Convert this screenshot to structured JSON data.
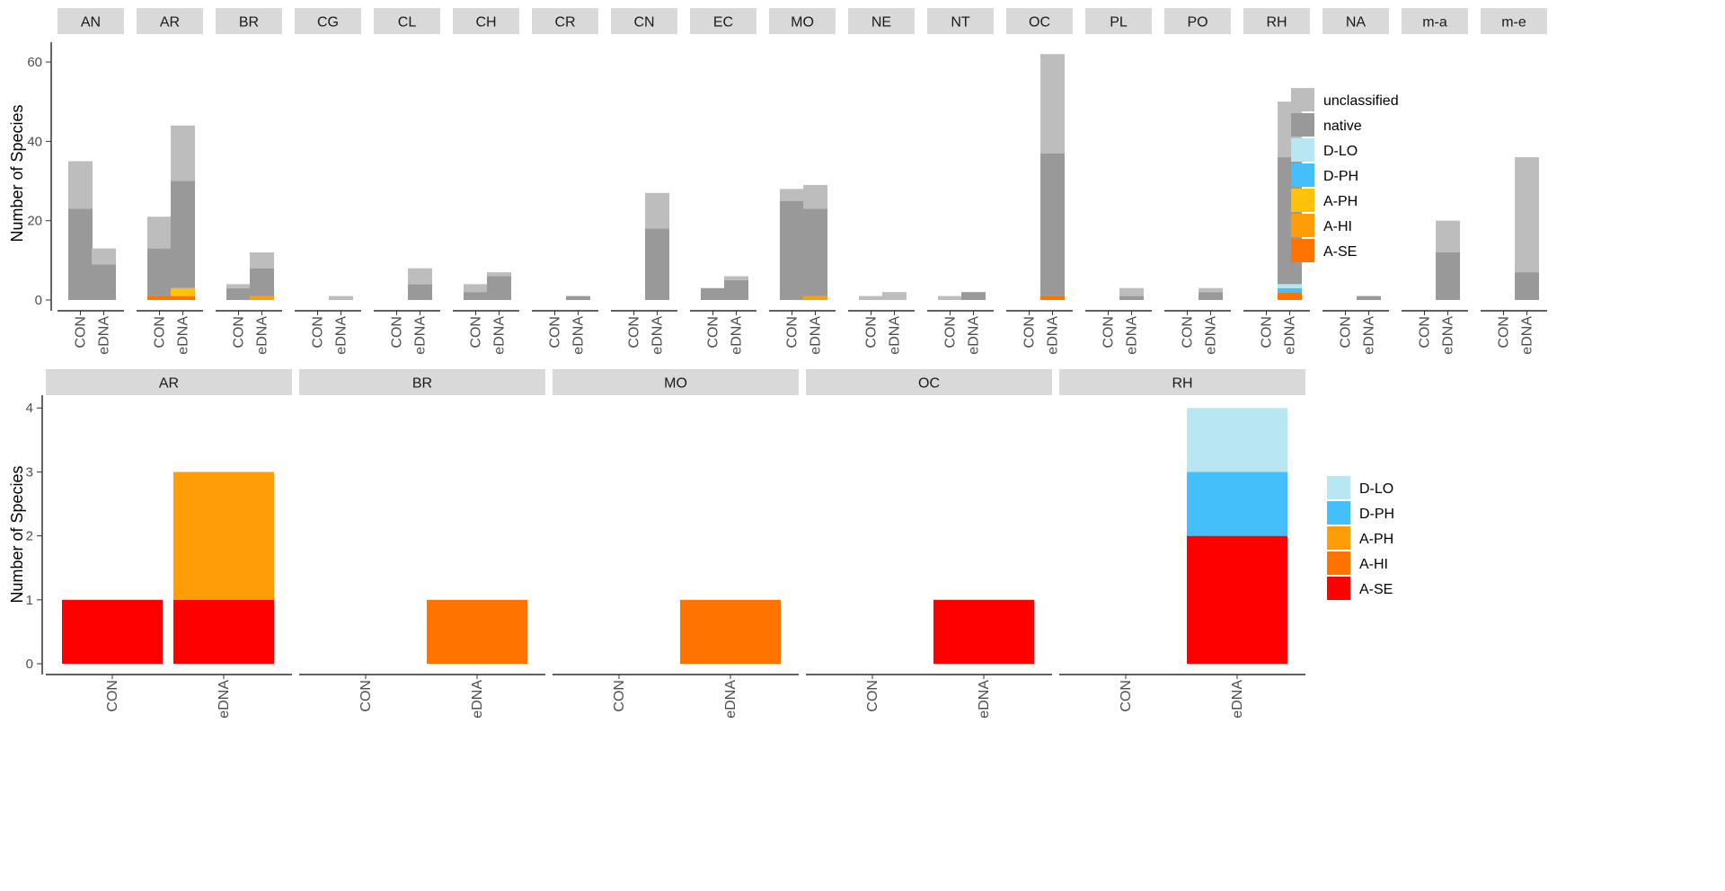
{
  "chart_data": [
    {
      "type": "bar",
      "stacked": true,
      "ylabel": "Number of Species",
      "ylim": [
        0,
        65
      ],
      "y_ticks": [
        0,
        20,
        40,
        60
      ],
      "x_categories": [
        "CON",
        "eDNA"
      ],
      "facets": [
        "AN",
        "AR",
        "BR",
        "CG",
        "CL",
        "CH",
        "CR",
        "CN",
        "EC",
        "MO",
        "NE",
        "NT",
        "OC",
        "PL",
        "PO",
        "RH",
        "NA",
        "m-a",
        "m-e"
      ],
      "legend": [
        {
          "name": "unclassified",
          "color": "#bdbdbd"
        },
        {
          "name": "native",
          "color": "#999999"
        },
        {
          "name": "D-LO",
          "color": "#b8e6f2"
        },
        {
          "name": "D-PH",
          "color": "#45bffa"
        },
        {
          "name": "A-PH",
          "color": "#ffc20a"
        },
        {
          "name": "A-HI",
          "color": "#ff9d09"
        },
        {
          "name": "A-SE",
          "color": "#ff7300"
        }
      ],
      "legend_position": "right",
      "grid": false,
      "series": [
        {
          "name": "A-SE",
          "values": [
            [
              0,
              0
            ],
            [
              1,
              1
            ],
            [
              0,
              0
            ],
            [
              0,
              0
            ],
            [
              0,
              0
            ],
            [
              0,
              0
            ],
            [
              0,
              0
            ],
            [
              0,
              0
            ],
            [
              0,
              0
            ],
            [
              0,
              0
            ],
            [
              0,
              0
            ],
            [
              0,
              0
            ],
            [
              0,
              1
            ],
            [
              0,
              0
            ],
            [
              0,
              0
            ],
            [
              0,
              2
            ],
            [
              0,
              0
            ],
            [
              0,
              0
            ],
            [
              0,
              0
            ]
          ]
        },
        {
          "name": "A-HI",
          "values": [
            [
              0,
              0
            ],
            [
              0,
              0
            ],
            [
              0,
              1
            ],
            [
              0,
              0
            ],
            [
              0,
              0
            ],
            [
              0,
              0
            ],
            [
              0,
              0
            ],
            [
              0,
              0
            ],
            [
              0,
              0
            ],
            [
              0,
              1
            ],
            [
              0,
              0
            ],
            [
              0,
              0
            ],
            [
              0,
              0
            ],
            [
              0,
              0
            ],
            [
              0,
              0
            ],
            [
              0,
              0
            ],
            [
              0,
              0
            ],
            [
              0,
              0
            ],
            [
              0,
              0
            ]
          ]
        },
        {
          "name": "A-PH",
          "values": [
            [
              0,
              0
            ],
            [
              0,
              2
            ],
            [
              0,
              0
            ],
            [
              0,
              0
            ],
            [
              0,
              0
            ],
            [
              0,
              0
            ],
            [
              0,
              0
            ],
            [
              0,
              0
            ],
            [
              0,
              0
            ],
            [
              0,
              0
            ],
            [
              0,
              0
            ],
            [
              0,
              0
            ],
            [
              0,
              0
            ],
            [
              0,
              0
            ],
            [
              0,
              0
            ],
            [
              0,
              0
            ],
            [
              0,
              0
            ],
            [
              0,
              0
            ],
            [
              0,
              0
            ]
          ]
        },
        {
          "name": "D-PH",
          "values": [
            [
              0,
              0
            ],
            [
              0,
              0
            ],
            [
              0,
              0
            ],
            [
              0,
              0
            ],
            [
              0,
              0
            ],
            [
              0,
              0
            ],
            [
              0,
              0
            ],
            [
              0,
              0
            ],
            [
              0,
              0
            ],
            [
              0,
              0
            ],
            [
              0,
              0
            ],
            [
              0,
              0
            ],
            [
              0,
              0
            ],
            [
              0,
              0
            ],
            [
              0,
              0
            ],
            [
              0,
              1
            ],
            [
              0,
              0
            ],
            [
              0,
              0
            ],
            [
              0,
              0
            ]
          ]
        },
        {
          "name": "D-LO",
          "values": [
            [
              0,
              0
            ],
            [
              0,
              0
            ],
            [
              0,
              0
            ],
            [
              0,
              0
            ],
            [
              0,
              0
            ],
            [
              0,
              0
            ],
            [
              0,
              0
            ],
            [
              0,
              0
            ],
            [
              0,
              0
            ],
            [
              0,
              0
            ],
            [
              0,
              0
            ],
            [
              0,
              0
            ],
            [
              0,
              0
            ],
            [
              0,
              0
            ],
            [
              0,
              0
            ],
            [
              0,
              1
            ],
            [
              0,
              0
            ],
            [
              0,
              0
            ],
            [
              0,
              0
            ]
          ]
        },
        {
          "name": "native",
          "values": [
            [
              23,
              9
            ],
            [
              12,
              27
            ],
            [
              3,
              7
            ],
            [
              0,
              0
            ],
            [
              0,
              4
            ],
            [
              2,
              6
            ],
            [
              0,
              1
            ],
            [
              0,
              18
            ],
            [
              3,
              5
            ],
            [
              25,
              22
            ],
            [
              0,
              0
            ],
            [
              0,
              2
            ],
            [
              0,
              36
            ],
            [
              0,
              1
            ],
            [
              0,
              2
            ],
            [
              0,
              32
            ],
            [
              0,
              1
            ],
            [
              0,
              12
            ],
            [
              0,
              7
            ]
          ]
        },
        {
          "name": "unclassified",
          "values": [
            [
              12,
              4
            ],
            [
              8,
              14
            ],
            [
              1,
              4
            ],
            [
              0,
              1
            ],
            [
              0,
              4
            ],
            [
              2,
              1
            ],
            [
              0,
              0
            ],
            [
              0,
              9
            ],
            [
              0,
              1
            ],
            [
              3,
              6
            ],
            [
              1,
              2
            ],
            [
              1,
              0
            ],
            [
              0,
              25
            ],
            [
              0,
              2
            ],
            [
              0,
              1
            ],
            [
              0,
              14
            ],
            [
              0,
              0
            ],
            [
              0,
              8
            ],
            [
              0,
              29
            ]
          ]
        }
      ]
    },
    {
      "type": "bar",
      "stacked": true,
      "ylabel": "Number of Species",
      "ylim": [
        0,
        4.2
      ],
      "y_ticks": [
        0,
        1,
        2,
        3,
        4
      ],
      "x_categories": [
        "CON",
        "eDNA"
      ],
      "facets": [
        "AR",
        "BR",
        "MO",
        "OC",
        "RH"
      ],
      "legend": [
        {
          "name": "D-LO",
          "color": "#b8e6f2"
        },
        {
          "name": "D-PH",
          "color": "#45bffa"
        },
        {
          "name": "A-PH",
          "color": "#ff9d09"
        },
        {
          "name": "A-HI",
          "color": "#ff7300"
        },
        {
          "name": "A-SE",
          "color": "#ff0000"
        }
      ],
      "legend_position": "right",
      "grid": false,
      "series": [
        {
          "name": "A-SE",
          "values": [
            [
              1,
              1
            ],
            [
              0,
              0
            ],
            [
              0,
              0
            ],
            [
              0,
              1
            ],
            [
              0,
              2
            ]
          ]
        },
        {
          "name": "A-HI",
          "values": [
            [
              0,
              0
            ],
            [
              0,
              1
            ],
            [
              0,
              1
            ],
            [
              0,
              0
            ],
            [
              0,
              0
            ]
          ]
        },
        {
          "name": "A-PH",
          "values": [
            [
              0,
              2
            ],
            [
              0,
              0
            ],
            [
              0,
              0
            ],
            [
              0,
              0
            ],
            [
              0,
              0
            ]
          ]
        },
        {
          "name": "D-PH",
          "values": [
            [
              0,
              0
            ],
            [
              0,
              0
            ],
            [
              0,
              0
            ],
            [
              0,
              0
            ],
            [
              0,
              1
            ]
          ]
        },
        {
          "name": "D-LO",
          "values": [
            [
              0,
              0
            ],
            [
              0,
              0
            ],
            [
              0,
              0
            ],
            [
              0,
              0
            ],
            [
              0,
              1
            ]
          ]
        }
      ]
    }
  ]
}
